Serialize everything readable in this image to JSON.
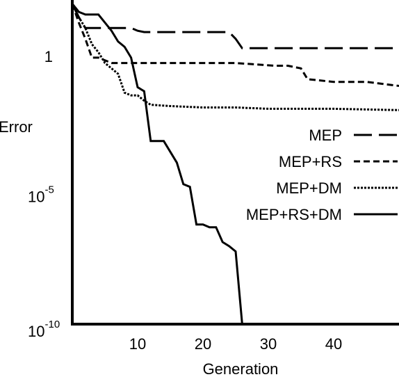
{
  "chart_data": {
    "type": "line",
    "xlabel": "Generation",
    "ylabel": "Error",
    "x_ticks": [
      10,
      20,
      30,
      40
    ],
    "y_ticks": [
      {
        "value": 0,
        "base": "1",
        "exp": ""
      },
      {
        "value": -5,
        "base": "10",
        "exp": "-5"
      },
      {
        "value": -10,
        "base": "10",
        "exp": "-10"
      }
    ],
    "xlim": [
      0,
      50
    ],
    "ylim_log10": [
      -10,
      1.5
    ],
    "y_scale": "log",
    "grid": false,
    "legend_position": "right-middle",
    "series": [
      {
        "name": "MEP",
        "style": "long-dash",
        "x": [
          0,
          1,
          2,
          3,
          4,
          5,
          6,
          7,
          8,
          9,
          10,
          11,
          12,
          20,
          24,
          25,
          26,
          30,
          35,
          40,
          45,
          50
        ],
        "log10_y": [
          1.9,
          1.4,
          1.0,
          1.0,
          1.0,
          1.0,
          1.0,
          1.0,
          1.0,
          1.0,
          0.9,
          0.85,
          0.85,
          0.85,
          0.85,
          0.6,
          0.25,
          0.25,
          0.25,
          0.25,
          0.25,
          0.25
        ]
      },
      {
        "name": "MEP+RS",
        "style": "dashed",
        "x": [
          0,
          1,
          2,
          3,
          4,
          6,
          8,
          10,
          15,
          20,
          25,
          31,
          33,
          35,
          36,
          40,
          45,
          50
        ],
        "log10_y": [
          1.9,
          1.2,
          0.6,
          -0.1,
          -0.1,
          -0.3,
          -0.3,
          -0.3,
          -0.3,
          -0.3,
          -0.3,
          -0.4,
          -0.4,
          -0.5,
          -0.9,
          -1.0,
          -1.0,
          -1.15
        ]
      },
      {
        "name": "MEP+DM",
        "style": "dotted",
        "x": [
          0,
          1,
          2,
          3,
          4,
          5,
          6,
          7,
          8,
          9,
          10,
          11,
          12,
          15,
          20,
          25,
          30,
          40,
          50
        ],
        "log10_y": [
          1.9,
          1.4,
          1.0,
          0.4,
          0.1,
          -0.3,
          -0.5,
          -0.7,
          -1.4,
          -1.5,
          -1.5,
          -1.7,
          -1.85,
          -1.9,
          -1.95,
          -1.95,
          -2.0,
          -2.0,
          -2.05
        ]
      },
      {
        "name": "MEP+RS+DM",
        "style": "solid",
        "x": [
          0,
          1,
          2,
          4,
          6,
          7,
          8,
          9,
          10,
          11,
          12,
          14,
          16,
          17,
          18,
          19,
          20,
          21,
          22,
          23,
          24,
          25,
          26
        ],
        "log10_y": [
          1.9,
          1.6,
          1.5,
          1.5,
          0.9,
          0.5,
          0.3,
          -0.1,
          -1.2,
          -1.35,
          -3.2,
          -3.2,
          -4.0,
          -4.8,
          -4.9,
          -6.3,
          -6.3,
          -6.4,
          -6.4,
          -6.95,
          -7.1,
          -7.3,
          -10.0
        ]
      }
    ]
  }
}
